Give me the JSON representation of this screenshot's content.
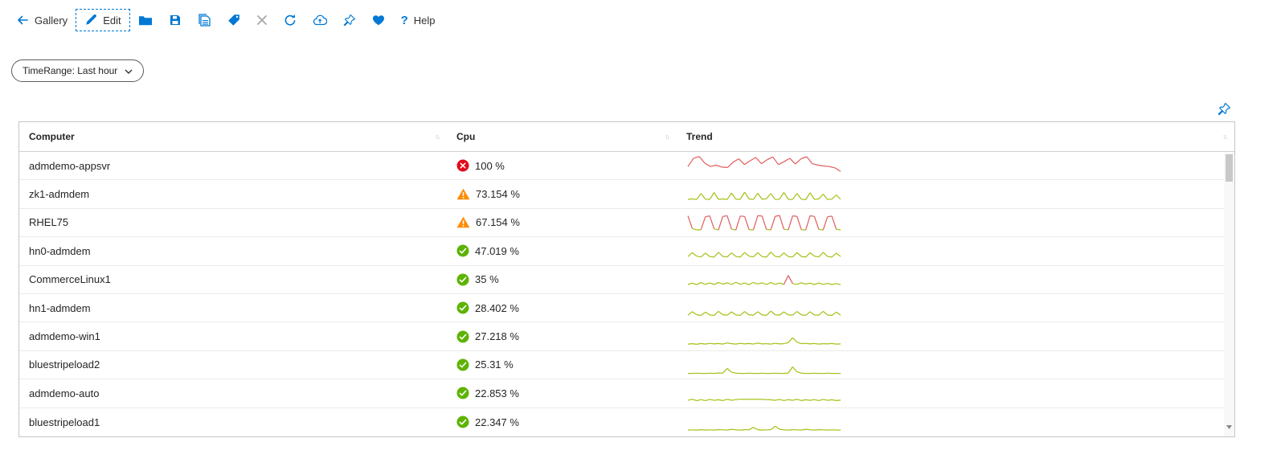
{
  "toolbar": {
    "gallery_label": "Gallery",
    "edit_label": "Edit",
    "help_glyph": "?",
    "help_label": "Help"
  },
  "filters": {
    "time_range_label": "TimeRange: Last hour"
  },
  "grid": {
    "columns": [
      "Computer",
      "Cpu",
      "Trend"
    ],
    "sort_glyph": "↑↓",
    "rows": [
      {
        "computer": "admdemo-appsvr",
        "status": "error",
        "cpu": "100 %",
        "trend": {
          "threshold": 0,
          "values": [
            45,
            88,
            97,
            62,
            45,
            52,
            42,
            40,
            68,
            85,
            55,
            75,
            92,
            60,
            80,
            95,
            55,
            70,
            88,
            58,
            85,
            96,
            60,
            52,
            48,
            45,
            38,
            20
          ]
        }
      },
      {
        "computer": "zk1-admdem",
        "status": "warning",
        "cpu": "73.154 %",
        "trend": {
          "threshold": 101,
          "values": [
            25,
            27,
            24,
            55,
            26,
            24,
            60,
            25,
            27,
            24,
            58,
            26,
            25,
            62,
            27,
            24,
            57,
            25,
            28,
            55,
            24,
            26,
            61,
            25,
            24,
            56,
            26,
            23,
            59,
            25,
            27,
            52,
            24,
            26,
            48,
            25
          ]
        }
      },
      {
        "computer": "RHEL75",
        "status": "warning",
        "cpu": "67.154 %",
        "trend": {
          "threshold": 60,
          "values": [
            85,
            20,
            12,
            14,
            80,
            85,
            18,
            12,
            82,
            86,
            16,
            12,
            84,
            82,
            14,
            12,
            86,
            84,
            15,
            12,
            83,
            87,
            16,
            13,
            85,
            83,
            14,
            12,
            86,
            82,
            15,
            12,
            80,
            84,
            16,
            12
          ]
        }
      },
      {
        "computer": "hn0-admdem",
        "status": "success",
        "cpu": "47.019 %",
        "trend": {
          "threshold": 101,
          "values": [
            20,
            40,
            22,
            18,
            38,
            20,
            17,
            42,
            21,
            18,
            39,
            20,
            17,
            41,
            22,
            18,
            40,
            20,
            17,
            43,
            21,
            18,
            39,
            20,
            18,
            41,
            21,
            17,
            40,
            22,
            18,
            42,
            20,
            17,
            38,
            20
          ]
        }
      },
      {
        "computer": "CommerceLinux1",
        "status": "success",
        "cpu": "35 %",
        "trend": {
          "threshold": 60,
          "values": [
            25,
            32,
            24,
            35,
            26,
            33,
            25,
            36,
            27,
            34,
            25,
            37,
            26,
            33,
            24,
            36,
            28,
            34,
            25,
            35,
            26,
            33,
            25,
            72,
            30,
            26,
            34,
            27,
            32,
            25,
            33,
            26,
            31,
            25,
            30,
            24
          ]
        }
      },
      {
        "computer": "hn1-admdem",
        "status": "success",
        "cpu": "28.402 %",
        "trend": {
          "threshold": 101,
          "values": [
            12,
            30,
            14,
            11,
            28,
            13,
            11,
            32,
            14,
            12,
            29,
            13,
            11,
            31,
            14,
            12,
            30,
            13,
            11,
            33,
            14,
            12,
            29,
            13,
            12,
            31,
            14,
            11,
            30,
            13,
            12,
            32,
            13,
            11,
            28,
            12
          ]
        }
      },
      {
        "computer": "admdemo-win1",
        "status": "success",
        "cpu": "27.218 %",
        "trend": {
          "threshold": 101,
          "values": [
            12,
            14,
            11,
            15,
            12,
            16,
            13,
            15,
            12,
            18,
            14,
            12,
            16,
            13,
            15,
            12,
            17,
            13,
            14,
            12,
            16,
            13,
            14,
            20,
            45,
            22,
            14,
            16,
            13,
            15,
            12,
            14,
            13,
            15,
            12,
            13
          ]
        }
      },
      {
        "computer": "bluestripeload2",
        "status": "success",
        "cpu": "25.31 %",
        "trend": {
          "threshold": 101,
          "values": [
            6,
            6,
            7,
            6,
            6,
            7,
            6,
            8,
            7,
            32,
            12,
            7,
            6,
            6,
            7,
            6,
            6,
            7,
            6,
            6,
            7,
            6,
            6,
            8,
            40,
            14,
            7,
            6,
            6,
            7,
            6,
            6,
            7,
            6,
            6,
            6
          ]
        }
      },
      {
        "computer": "admdemo-auto",
        "status": "success",
        "cpu": "22.853 %",
        "trend": {
          "threshold": 101,
          "values": [
            12,
            18,
            10,
            16,
            11,
            17,
            12,
            15,
            11,
            18,
            12,
            16,
            18,
            17,
            18,
            17,
            18,
            17,
            16,
            15,
            12,
            17,
            11,
            16,
            12,
            18,
            11,
            15,
            12,
            16,
            11,
            17,
            12,
            15,
            11,
            13
          ]
        }
      },
      {
        "computer": "bluestripeload1",
        "status": "success",
        "cpu": "22.347 %",
        "trend": {
          "threshold": 101,
          "values": [
            8,
            9,
            8,
            10,
            8,
            9,
            8,
            10,
            9,
            8,
            12,
            9,
            8,
            10,
            9,
            22,
            10,
            8,
            9,
            10,
            28,
            12,
            9,
            8,
            10,
            9,
            8,
            12,
            9,
            8,
            10,
            9,
            8,
            9,
            8,
            8
          ]
        }
      }
    ]
  },
  "colors": {
    "accent": "#0078d4",
    "trend_green": "#a2c113",
    "trend_red": "#e05c5c",
    "status_error": "#e00b1c",
    "status_warning": "#ff8c00",
    "status_success": "#5db300"
  }
}
